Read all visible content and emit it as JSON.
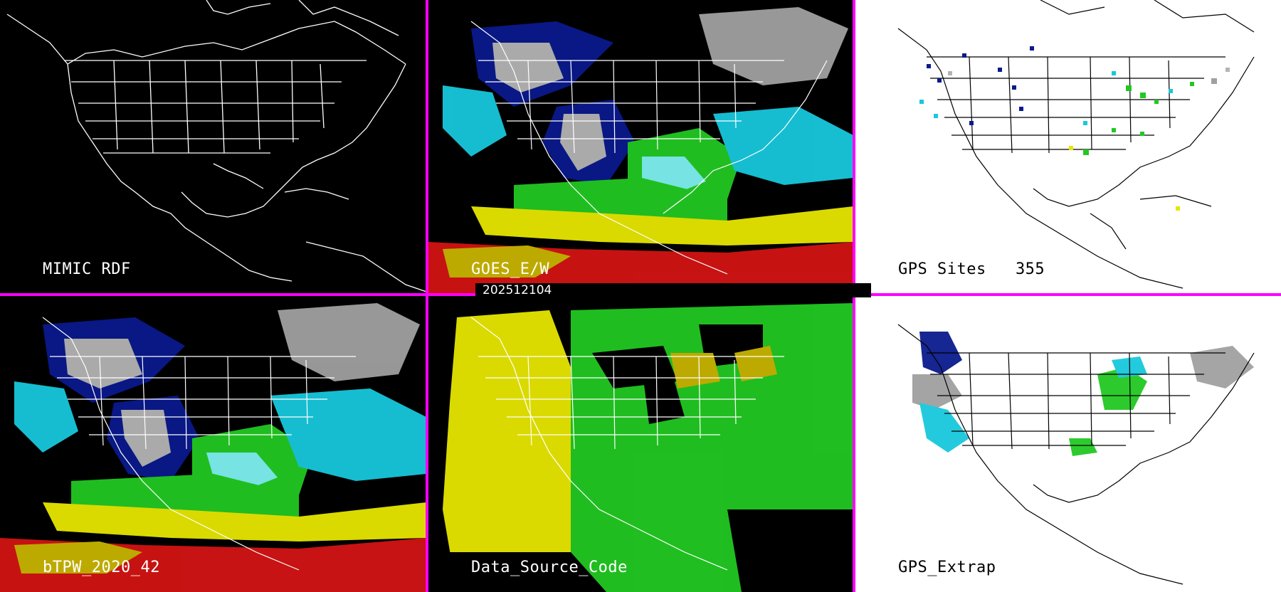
{
  "panels": [
    {
      "label": "MIMIC RDF",
      "theme": "dark"
    },
    {
      "label": "GOES_E/W",
      "theme": "dark"
    },
    {
      "label": "GPS Sites   355",
      "theme": "light"
    },
    {
      "label": "bTPW_2020_42",
      "theme": "dark"
    },
    {
      "label": "Data_Source_Code",
      "theme": "dark"
    },
    {
      "label": "GPS_Extrap",
      "theme": "light"
    }
  ],
  "timestamp": "202512104",
  "colors": {
    "divider": "#ff00ff",
    "dark_map_lines": "#ffffff",
    "light_map_lines": "#000000",
    "tpw_scale": [
      "#0a1a8c",
      "#1e3cc8",
      "#18c8dc",
      "#7ef0f0",
      "#22c822",
      "#7adc3c",
      "#e6e600",
      "#c8b400",
      "#d21414",
      "#a000a0",
      "#b4b4b4"
    ]
  }
}
